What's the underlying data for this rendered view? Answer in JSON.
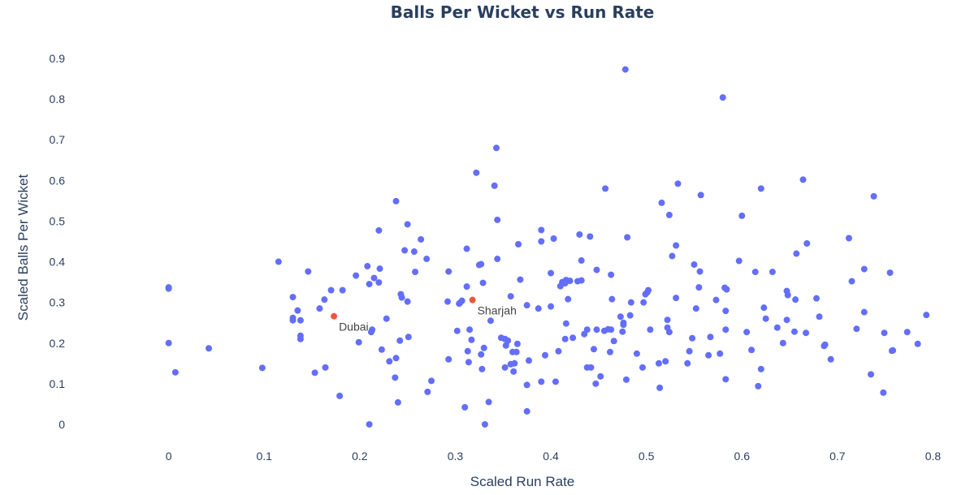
{
  "chart_data": {
    "type": "scatter",
    "title": "Balls Per Wicket vs Run Rate",
    "xlabel": "Scaled Run Rate",
    "ylabel": "Scaled Balls Per Wicket",
    "xlim": [
      -0.1,
      0.82
    ],
    "ylim": [
      -0.04,
      0.94
    ],
    "xticks": [
      "0",
      "0.1",
      "0.2",
      "0.3",
      "0.4",
      "0.5",
      "0.6",
      "0.7",
      "0.8"
    ],
    "yticks": [
      "0",
      "0.1",
      "0.2",
      "0.3",
      "0.4",
      "0.5",
      "0.6",
      "0.7",
      "0.8",
      "0.9"
    ],
    "grid": false,
    "colors": {
      "points": "#636efa",
      "highlight": "#ef553b"
    },
    "highlighted": [
      {
        "label": "Dubai",
        "x": 0.173,
        "y": 0.266
      },
      {
        "label": "Sharjah",
        "x": 0.318,
        "y": 0.306
      }
    ],
    "points": [
      [
        0,
        0.337
      ],
      [
        0,
        0.334
      ],
      [
        0,
        0.2
      ],
      [
        0.007,
        0.128
      ],
      [
        0.042,
        0.187
      ],
      [
        0.098,
        0.139
      ],
      [
        0.115,
        0.4
      ],
      [
        0.13,
        0.313
      ],
      [
        0.13,
        0.262
      ],
      [
        0.13,
        0.256
      ],
      [
        0.135,
        0.28
      ],
      [
        0.138,
        0.218
      ],
      [
        0.138,
        0.21
      ],
      [
        0.138,
        0.256
      ],
      [
        0.146,
        0.376
      ],
      [
        0.153,
        0.127
      ],
      [
        0.158,
        0.285
      ],
      [
        0.163,
        0.307
      ],
      [
        0.164,
        0.14
      ],
      [
        0.17,
        0.33
      ],
      [
        0.179,
        0.07
      ],
      [
        0.182,
        0.33
      ],
      [
        0.196,
        0.366
      ],
      [
        0.199,
        0.202
      ],
      [
        0.208,
        0.389
      ],
      [
        0.21,
        0.345
      ],
      [
        0.21,
        0
      ],
      [
        0.212,
        0.227
      ],
      [
        0.213,
        0.233
      ],
      [
        0.215,
        0.36
      ],
      [
        0.22,
        0.349
      ],
      [
        0.22,
        0.477
      ],
      [
        0.221,
        0.383
      ],
      [
        0.223,
        0.184
      ],
      [
        0.228,
        0.26
      ],
      [
        0.231,
        0.155
      ],
      [
        0.237,
        0.115
      ],
      [
        0.238,
        0.163
      ],
      [
        0.238,
        0.549
      ],
      [
        0.24,
        0.054
      ],
      [
        0.242,
        0.206
      ],
      [
        0.243,
        0.32
      ],
      [
        0.244,
        0.312
      ],
      [
        0.247,
        0.428
      ],
      [
        0.25,
        0.302
      ],
      [
        0.25,
        0.492
      ],
      [
        0.251,
        0.215
      ],
      [
        0.257,
        0.425
      ],
      [
        0.258,
        0.375
      ],
      [
        0.264,
        0.455
      ],
      [
        0.27,
        0.407
      ],
      [
        0.271,
        0.08
      ],
      [
        0.275,
        0.107
      ],
      [
        0.292,
        0.302
      ],
      [
        0.293,
        0.376
      ],
      [
        0.293,
        0.16
      ],
      [
        0.302,
        0.23
      ],
      [
        0.304,
        0.297
      ],
      [
        0.305,
        0.299
      ],
      [
        0.307,
        0.304
      ],
      [
        0.31,
        0.042
      ],
      [
        0.312,
        0.339
      ],
      [
        0.312,
        0.432
      ],
      [
        0.313,
        0.18
      ],
      [
        0.314,
        0.153
      ],
      [
        0.315,
        0.233
      ],
      [
        0.317,
        0.208
      ],
      [
        0.322,
        0.619
      ],
      [
        0.325,
        0.392
      ],
      [
        0.327,
        0.394
      ],
      [
        0.327,
        0.172
      ],
      [
        0.328,
        0.136
      ],
      [
        0.329,
        0.348
      ],
      [
        0.33,
        0.188
      ],
      [
        0.331,
        0
      ],
      [
        0.335,
        0.055
      ],
      [
        0.337,
        0.255
      ],
      [
        0.341,
        0.587
      ],
      [
        0.343,
        0.68
      ],
      [
        0.344,
        0.503
      ],
      [
        0.344,
        0.407
      ],
      [
        0.348,
        0.213
      ],
      [
        0.352,
        0.21
      ],
      [
        0.352,
        0.14
      ],
      [
        0.353,
        0.194
      ],
      [
        0.355,
        0.206
      ],
      [
        0.358,
        0.148
      ],
      [
        0.358,
        0.315
      ],
      [
        0.36,
        0.178
      ],
      [
        0.361,
        0.13
      ],
      [
        0.362,
        0.15
      ],
      [
        0.364,
        0.178
      ],
      [
        0.365,
        0.198
      ],
      [
        0.366,
        0.443
      ],
      [
        0.368,
        0.356
      ],
      [
        0.375,
        0.293
      ],
      [
        0.375,
        0.097
      ],
      [
        0.375,
        0.032
      ],
      [
        0.377,
        0.157
      ],
      [
        0.387,
        0.285
      ],
      [
        0.39,
        0.45
      ],
      [
        0.39,
        0.478
      ],
      [
        0.39,
        0.105
      ],
      [
        0.394,
        0.17
      ],
      [
        0.4,
        0.372
      ],
      [
        0.4,
        0.29
      ],
      [
        0.403,
        0.457
      ],
      [
        0.405,
        0.105
      ],
      [
        0.408,
        0.18
      ],
      [
        0.41,
        0.34
      ],
      [
        0.412,
        0.35
      ],
      [
        0.415,
        0.21
      ],
      [
        0.415,
        0.347
      ],
      [
        0.416,
        0.355
      ],
      [
        0.416,
        0.248
      ],
      [
        0.418,
        0.308
      ],
      [
        0.42,
        0.353
      ],
      [
        0.423,
        0.213
      ],
      [
        0.428,
        0.352
      ],
      [
        0.43,
        0.467
      ],
      [
        0.432,
        0.403
      ],
      [
        0.432,
        0.354
      ],
      [
        0.435,
        0.222
      ],
      [
        0.438,
        0.14
      ],
      [
        0.438,
        0.233
      ],
      [
        0.441,
        0.462
      ],
      [
        0.442,
        0.14
      ],
      [
        0.445,
        0.185
      ],
      [
        0.447,
        0.1
      ],
      [
        0.448,
        0.233
      ],
      [
        0.448,
        0.38
      ],
      [
        0.452,
        0.118
      ],
      [
        0.456,
        0.23
      ],
      [
        0.457,
        0.58
      ],
      [
        0.46,
        0.234
      ],
      [
        0.462,
        0.178
      ],
      [
        0.463,
        0.233
      ],
      [
        0.463,
        0.368
      ],
      [
        0.464,
        0.308
      ],
      [
        0.466,
        0.205
      ],
      [
        0.473,
        0.265
      ],
      [
        0.475,
        0.228
      ],
      [
        0.476,
        0.25
      ],
      [
        0.476,
        0.245
      ],
      [
        0.478,
        0.873
      ],
      [
        0.479,
        0.11
      ],
      [
        0.48,
        0.46
      ],
      [
        0.483,
        0.268
      ],
      [
        0.484,
        0.3
      ],
      [
        0.49,
        0.174
      ],
      [
        0.496,
        0.14
      ],
      [
        0.497,
        0.3
      ],
      [
        0.499,
        0.32
      ],
      [
        0.501,
        0.325
      ],
      [
        0.502,
        0.33
      ],
      [
        0.504,
        0.233
      ],
      [
        0.513,
        0.15
      ],
      [
        0.514,
        0.09
      ],
      [
        0.516,
        0.545
      ],
      [
        0.52,
        0.155
      ],
      [
        0.522,
        0.238
      ],
      [
        0.522,
        0.257
      ],
      [
        0.524,
        0.227
      ],
      [
        0.524,
        0.515
      ],
      [
        0.527,
        0.414
      ],
      [
        0.531,
        0.44
      ],
      [
        0.531,
        0.311
      ],
      [
        0.533,
        0.592
      ],
      [
        0.543,
        0.15
      ],
      [
        0.545,
        0.18
      ],
      [
        0.548,
        0.212
      ],
      [
        0.55,
        0.393
      ],
      [
        0.552,
        0.285
      ],
      [
        0.555,
        0.337
      ],
      [
        0.556,
        0.376
      ],
      [
        0.557,
        0.564
      ],
      [
        0.565,
        0.17
      ],
      [
        0.567,
        0.215
      ],
      [
        0.573,
        0.306
      ],
      [
        0.577,
        0.174
      ],
      [
        0.58,
        0.804
      ],
      [
        0.582,
        0.336
      ],
      [
        0.583,
        0.111
      ],
      [
        0.583,
        0.279
      ],
      [
        0.583,
        0.233
      ],
      [
        0.584,
        0.332
      ],
      [
        0.597,
        0.402
      ],
      [
        0.6,
        0.513
      ],
      [
        0.605,
        0.227
      ],
      [
        0.61,
        0.183
      ],
      [
        0.614,
        0.375
      ],
      [
        0.617,
        0.094
      ],
      [
        0.62,
        0.136
      ],
      [
        0.62,
        0.58
      ],
      [
        0.623,
        0.287
      ],
      [
        0.625,
        0.26
      ],
      [
        0.632,
        0.375
      ],
      [
        0.637,
        0.238
      ],
      [
        0.643,
        0.2
      ],
      [
        0.647,
        0.257
      ],
      [
        0.647,
        0.328
      ],
      [
        0.648,
        0.318
      ],
      [
        0.655,
        0.228
      ],
      [
        0.656,
        0.307
      ],
      [
        0.657,
        0.42
      ],
      [
        0.664,
        0.602
      ],
      [
        0.667,
        0.225
      ],
      [
        0.668,
        0.445
      ],
      [
        0.678,
        0.31
      ],
      [
        0.681,
        0.265
      ],
      [
        0.686,
        0.193
      ],
      [
        0.687,
        0.196
      ],
      [
        0.693,
        0.16
      ],
      [
        0.712,
        0.458
      ],
      [
        0.715,
        0.352
      ],
      [
        0.72,
        0.235
      ],
      [
        0.728,
        0.382
      ],
      [
        0.728,
        0.276
      ],
      [
        0.735,
        0.123
      ],
      [
        0.738,
        0.561
      ],
      [
        0.748,
        0.078
      ],
      [
        0.749,
        0.225
      ],
      [
        0.755,
        0.373
      ],
      [
        0.757,
        0.181
      ],
      [
        0.758,
        0.182
      ],
      [
        0.773,
        0.227
      ],
      [
        0.784,
        0.198
      ],
      [
        0.793,
        0.269
      ]
    ]
  }
}
